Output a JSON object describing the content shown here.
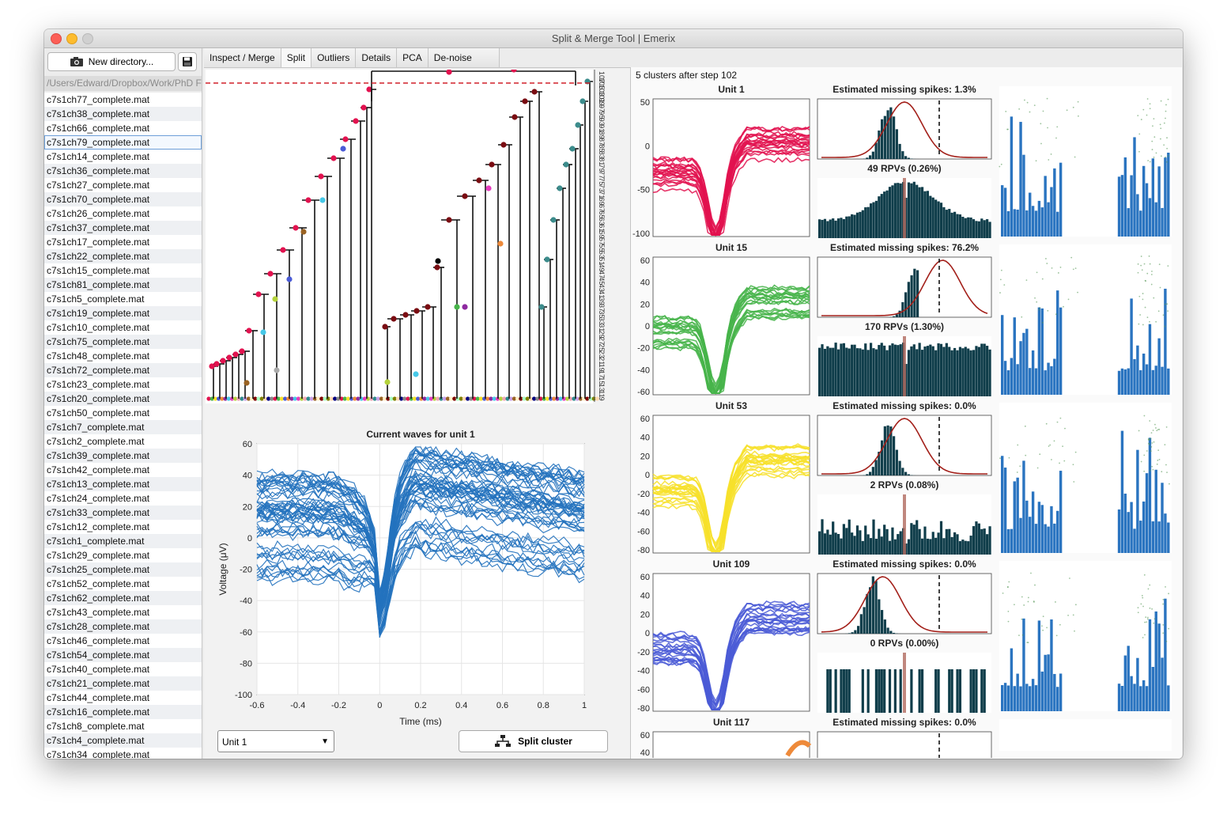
{
  "window": {
    "title": "Split & Merge Tool | Emerix"
  },
  "sidebar": {
    "new_directory_label": "New directory...",
    "path": "/Users/Edward/Dropbox/Work/PhD F",
    "files": [
      "c7s1ch77_complete.mat",
      "c7s1ch38_complete.mat",
      "c7s1ch66_complete.mat",
      "c7s1ch79_complete.mat",
      "c7s1ch14_complete.mat",
      "c7s1ch36_complete.mat",
      "c7s1ch27_complete.mat",
      "c7s1ch70_complete.mat",
      "c7s1ch26_complete.mat",
      "c7s1ch37_complete.mat",
      "c7s1ch17_complete.mat",
      "c7s1ch22_complete.mat",
      "c7s1ch15_complete.mat",
      "c7s1ch81_complete.mat",
      "c7s1ch5_complete.mat",
      "c7s1ch19_complete.mat",
      "c7s1ch10_complete.mat",
      "c7s1ch75_complete.mat",
      "c7s1ch48_complete.mat",
      "c7s1ch72_complete.mat",
      "c7s1ch23_complete.mat",
      "c7s1ch20_complete.mat",
      "c7s1ch50_complete.mat",
      "c7s1ch7_complete.mat",
      "c7s1ch2_complete.mat",
      "c7s1ch39_complete.mat",
      "c7s1ch42_complete.mat",
      "c7s1ch13_complete.mat",
      "c7s1ch24_complete.mat",
      "c7s1ch33_complete.mat",
      "c7s1ch12_complete.mat",
      "c7s1ch1_complete.mat",
      "c7s1ch29_complete.mat",
      "c7s1ch25_complete.mat",
      "c7s1ch52_complete.mat",
      "c7s1ch62_complete.mat",
      "c7s1ch43_complete.mat",
      "c7s1ch28_complete.mat",
      "c7s1ch46_complete.mat",
      "c7s1ch54_complete.mat",
      "c7s1ch40_complete.mat",
      "c7s1ch21_complete.mat",
      "c7s1ch44_complete.mat",
      "c7s1ch16_complete.mat",
      "c7s1ch8_complete.mat",
      "c7s1ch4_complete.mat",
      "c7s1ch34_complete.mat"
    ],
    "selected_index": 3
  },
  "tabs": [
    "Inspect / Merge",
    "Split",
    "Outliers",
    "Details",
    "PCA",
    "De-noise"
  ],
  "active_tab": 1,
  "dendrogram": {
    "y_labels_top": [
      "107",
      "106",
      "105",
      "104",
      "103",
      "102",
      "101",
      "100",
      "99"
    ],
    "threshold_color": "#d0202a"
  },
  "wave_chart": {
    "title": "Current waves for unit 1",
    "xlabel": "Time (ms)",
    "ylabel": "Voltage (μV)",
    "x_ticks": [
      "-0.6",
      "-0.4",
      "-0.2",
      "0",
      "0.2",
      "0.4",
      "0.6",
      "0.8",
      "1"
    ],
    "y_ticks": [
      "60",
      "40",
      "20",
      "0",
      "-20",
      "-40",
      "-60",
      "-80",
      "-100"
    ],
    "color": "#2372be"
  },
  "controls": {
    "unit_select": "Unit 1",
    "split_button": "Split cluster"
  },
  "right_panel": {
    "header": "5 clusters after step 102",
    "units": [
      {
        "name": "Unit 1",
        "color": "#e2124f",
        "y_ticks": [
          "50",
          "0",
          "-50",
          "-100"
        ],
        "missing": "Estimated missing spikes: 1.3%",
        "rpv": "49 RPVs (0.26%)"
      },
      {
        "name": "Unit 15",
        "color": "#47b44a",
        "y_ticks": [
          "60",
          "40",
          "20",
          "0",
          "-20",
          "-40",
          "-60"
        ],
        "missing": "Estimated missing spikes: 76.2%",
        "rpv": "170  RPVs  (1.30%)"
      },
      {
        "name": "Unit 53",
        "color": "#f7e02a",
        "y_ticks": [
          "60",
          "40",
          "20",
          "0",
          "-20",
          "-40",
          "-60",
          "-80"
        ],
        "missing": "Estimated missing spikes: 0.0%",
        "rpv": "2  RPVs  (0.08%)"
      },
      {
        "name": "Unit 109",
        "color": "#4a5bd6",
        "y_ticks": [
          "60",
          "40",
          "20",
          "0",
          "-20",
          "-40",
          "-60",
          "-80"
        ],
        "missing": "Estimated missing spikes: 0.0%",
        "rpv": "0  RPVs  (0.00%)"
      },
      {
        "name": "Unit 117",
        "color": "#ee8a3a",
        "y_ticks": [
          "60",
          "40"
        ],
        "missing": "Estimated missing spikes: 0.0%",
        "rpv": ""
      }
    ]
  },
  "colors": {
    "bar_dark": "#0f3d4a",
    "fit_red": "#a3201a",
    "ampl_blue": "#2a74c0"
  }
}
